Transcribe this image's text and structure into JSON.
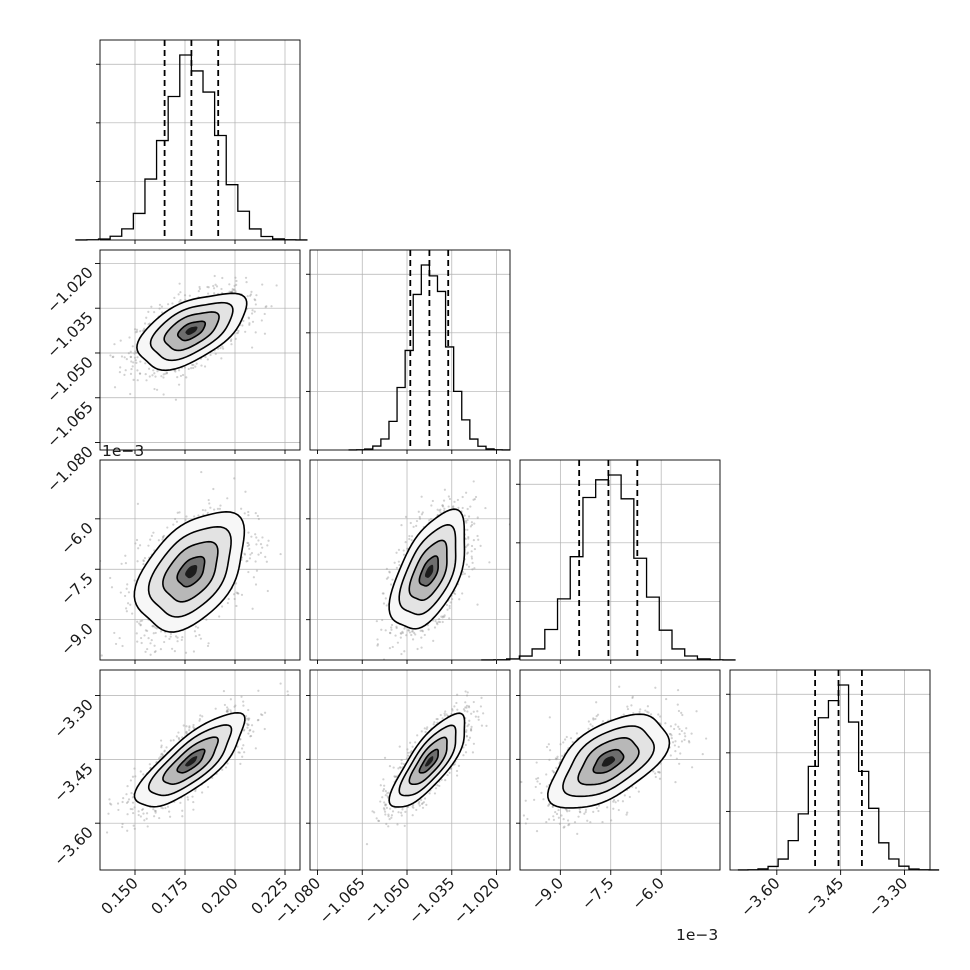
{
  "chart_data": {
    "type": "corner",
    "description_note": "",
    "parameters": [
      {
        "range": [
          0.1325,
          0.2325
        ],
        "ticks": [
          0.15,
          0.175,
          0.2,
          0.225
        ],
        "tick_labels": [
          "0.150",
          "0.175",
          "0.200",
          "0.225"
        ],
        "offset_label": "",
        "mean": 0.1782,
        "std": 0.0135,
        "quantiles": [
          0.1648,
          0.1782,
          0.1916
        ]
      },
      {
        "range": [
          -1.0825,
          -1.0155
        ],
        "ticks": [
          -1.08,
          -1.065,
          -1.05,
          -1.035,
          -1.02
        ],
        "tick_labels": [
          "−1.080",
          "−1.065",
          "−1.050",
          "−1.035",
          "−1.020"
        ],
        "offset_label": "",
        "mean": -1.0425,
        "std": 0.0063,
        "quantiles": [
          -1.0489,
          -1.0425,
          -1.0362
        ]
      },
      {
        "range": [
          -10.2,
          -4.25
        ],
        "ticks": [
          -9.0,
          -7.5,
          -6.0
        ],
        "tick_labels": [
          "−9.0",
          "−7.5",
          "−6.0"
        ],
        "offset_label": "1e−3",
        "mean": -7.57,
        "std": 0.88,
        "quantiles": [
          -8.44,
          -7.57,
          -6.71
        ]
      },
      {
        "range": [
          -3.71,
          -3.24
        ],
        "ticks": [
          -3.6,
          -3.45,
          -3.3
        ],
        "tick_labels": [
          "−3.60",
          "−3.45",
          "−3.30"
        ],
        "offset_label": "",
        "mean": -3.455,
        "std": 0.055,
        "quantiles": [
          -3.51,
          -3.455,
          -3.4
        ]
      }
    ],
    "correlations": [
      {
        "i": 1,
        "j": 0,
        "rho": 0.55
      },
      {
        "i": 2,
        "j": 0,
        "rho": 0.45
      },
      {
        "i": 2,
        "j": 1,
        "rho": 0.55
      },
      {
        "i": 3,
        "j": 0,
        "rho": 0.78
      },
      {
        "i": 3,
        "j": 1,
        "rho": 0.78
      },
      {
        "i": 3,
        "j": 2,
        "rho": 0.55
      }
    ],
    "contour_levels_sigma": [
      0.5,
      1.0,
      1.5,
      2.0
    ],
    "grid": true,
    "quantile_lines": "dashed",
    "colors": {
      "line": "#000000",
      "scatter": "#9a9a9a",
      "grid": "#b0b0b0",
      "frame": "#000000"
    }
  }
}
